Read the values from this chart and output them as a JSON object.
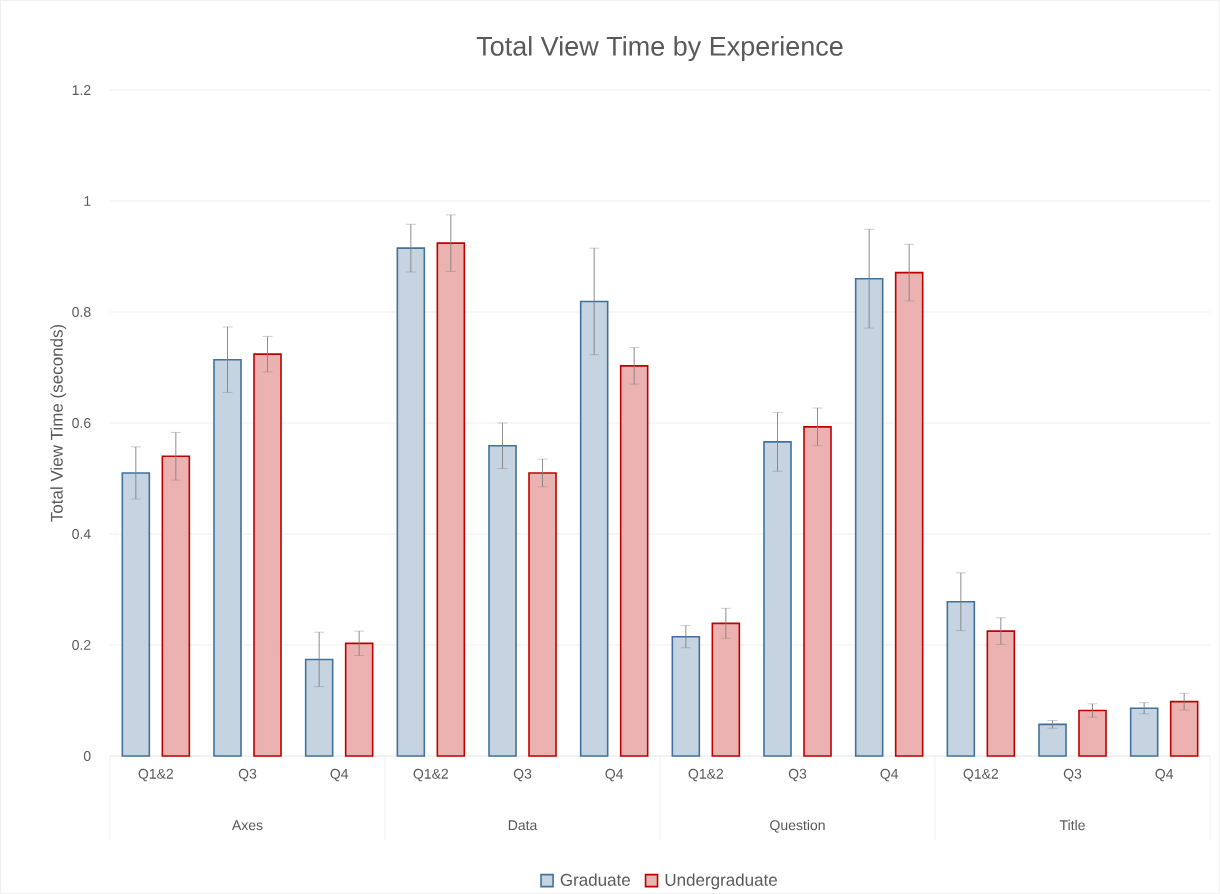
{
  "chart_data": {
    "type": "bar",
    "title": "Total View Time by Experience",
    "ylabel": "Total View Time (seconds)",
    "categories": [
      "Q1&2",
      "Q3",
      "Q4",
      "Q1&2",
      "Q3",
      "Q4",
      "Q1&2",
      "Q3",
      "Q4",
      "Q1&2",
      "Q3",
      "Q4"
    ],
    "annotations": [
      "Axes",
      "Data",
      "Question",
      "Title"
    ],
    "series": [
      {
        "name": "Graduate",
        "color": "#41719c",
        "values": [
          0.51,
          0.714,
          0.174,
          0.915,
          0.559,
          0.819,
          0.215,
          0.566,
          0.86,
          0.278,
          0.057,
          0.086
        ],
        "errors": [
          0.047,
          0.059,
          0.049,
          0.043,
          0.041,
          0.096,
          0.02,
          0.053,
          0.089,
          0.052,
          0.007,
          0.01
        ]
      },
      {
        "name": "Undergraduate",
        "color": "#c00000",
        "values": [
          0.54,
          0.724,
          0.203,
          0.924,
          0.51,
          0.703,
          0.239,
          0.593,
          0.871,
          0.225,
          0.082,
          0.098
        ],
        "errors": [
          0.043,
          0.032,
          0.022,
          0.051,
          0.025,
          0.033,
          0.027,
          0.034,
          0.051,
          0.024,
          0.012,
          0.015
        ]
      }
    ],
    "ylim": [
      0,
      1.2
    ],
    "yticks": [
      0,
      0.2,
      0.4,
      0.6,
      0.8,
      1,
      1.2
    ],
    "grid": "y",
    "legend": "bottom"
  }
}
